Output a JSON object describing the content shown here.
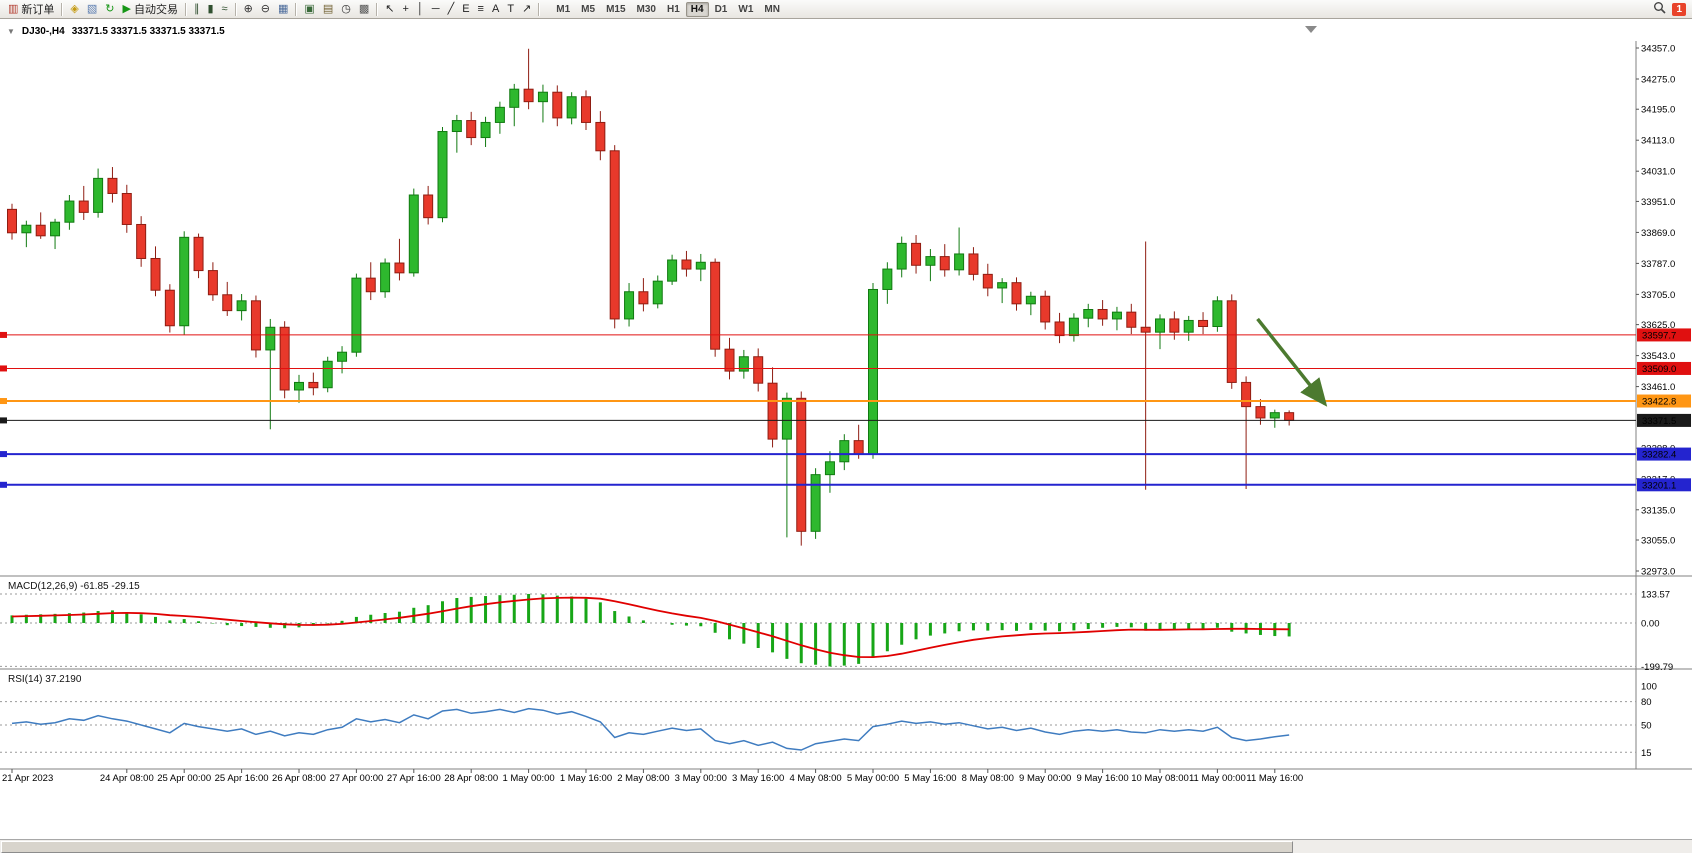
{
  "toolbar": {
    "items": [
      {
        "name": "new-order-button",
        "glyph": "▥",
        "glyph_color": "#b23b2e",
        "label": "新订单"
      },
      {
        "sep": true
      },
      {
        "name": "market-watch-button",
        "glyph": "◈",
        "glyph_color": "#c49a10"
      },
      {
        "name": "navigator-button",
        "glyph": "▧",
        "glyph_color": "#5b7db1"
      },
      {
        "name": "refresh-button",
        "glyph": "↻",
        "glyph_color": "#169616"
      },
      {
        "name": "autotrading-button",
        "glyph": "▶",
        "glyph_color": "#169616",
        "label": "自动交易"
      },
      {
        "sep": true
      },
      {
        "name": "bars-chart-button",
        "glyph": "∥",
        "glyph_color": "#305030"
      },
      {
        "name": "candlestick-chart-button",
        "glyph": "▮",
        "glyph_color": "#305030"
      },
      {
        "name": "line-chart-button",
        "glyph": "≈",
        "glyph_color": "#305030"
      },
      {
        "sep": true
      },
      {
        "name": "zoom-in-button",
        "glyph": "⊕",
        "glyph_color": "#333333"
      },
      {
        "name": "zoom-out-button",
        "glyph": "⊖",
        "glyph_color": "#333333"
      },
      {
        "name": "tile-windows-button",
        "glyph": "▦",
        "glyph_color": "#4a6a9a"
      },
      {
        "sep": true
      },
      {
        "name": "new-chart-button",
        "glyph": "▣",
        "glyph_color": "#3a6a3a"
      },
      {
        "name": "profiles-button",
        "glyph": "▤",
        "glyph_color": "#706030"
      },
      {
        "name": "period-clock-button",
        "glyph": "◷",
        "glyph_color": "#333333"
      },
      {
        "name": "templates-button",
        "glyph": "▩",
        "glyph_color": "#555555"
      },
      {
        "sep": true
      },
      {
        "name": "cursor-button",
        "glyph": "↖",
        "glyph_color": "#222222"
      },
      {
        "name": "crosshair-button",
        "glyph": "+",
        "glyph_color": "#222222"
      },
      {
        "name": "vertical-line-button",
        "glyph": "│",
        "glyph_color": "#222222"
      },
      {
        "name": "horizontal-line-button",
        "glyph": "─",
        "glyph_color": "#222222"
      },
      {
        "name": "trendline-button",
        "glyph": "╱",
        "glyph_color": "#222222"
      },
      {
        "name": "equidistant-channel-button",
        "glyph": "E",
        "glyph_color": "#222222"
      },
      {
        "name": "fibonacci-button",
        "glyph": "≡",
        "glyph_color": "#222222"
      },
      {
        "name": "text-button",
        "glyph": "A",
        "glyph_color": "#222222"
      },
      {
        "name": "text-label-button",
        "glyph": "T",
        "glyph_color": "#222222"
      },
      {
        "name": "arrows-button",
        "glyph": "↗",
        "glyph_color": "#222222"
      },
      {
        "sep": true
      }
    ],
    "timeframes": [
      "M1",
      "M5",
      "M15",
      "M30",
      "H1",
      "H4",
      "D1",
      "W1",
      "MN"
    ],
    "active_timeframe": "H4",
    "notification_count": "1"
  },
  "chart": {
    "symbol_period": "DJ30-,H4",
    "ohlc_line": "33371.5 33371.5 33371.5 33371.5"
  },
  "chart_data": {
    "type": "candlestick",
    "symbol": "DJ30-",
    "timeframe": "H4",
    "ylim": [
      32973.0,
      34357.0
    ],
    "price_axis_ticks": [
      34357.0,
      34275.0,
      34195.0,
      34113.0,
      34031.0,
      33951.0,
      33869.0,
      33787.0,
      33705.0,
      33625.0,
      33543.0,
      33461.0,
      33379.0,
      33298.0,
      33217.0,
      33135.0,
      33055.0,
      32973.0
    ],
    "levels": [
      {
        "price": 33597.7,
        "label": "33597.7",
        "color": "#e01010",
        "text_color": "#ffffff",
        "width": 1
      },
      {
        "price": 33509.0,
        "label": "33509.0",
        "color": "#e01010",
        "text_color": "#ffffff",
        "width": 1
      },
      {
        "price": 33422.8,
        "label": "33422.8",
        "color": "#ff9614",
        "text_color": "#000000",
        "width": 2
      },
      {
        "price": 33371.5,
        "label": "33371.5",
        "color": "#1a1a1a",
        "text_color": "#ffffff",
        "width": 1,
        "current": true
      },
      {
        "price": 33282.4,
        "label": "33282.4",
        "color": "#2424cf",
        "text_color": "#ffffff",
        "width": 2
      },
      {
        "price": 33201.1,
        "label": "33201.1",
        "color": "#2424cf",
        "text_color": "#ffffff",
        "width": 2
      }
    ],
    "time_labels": [
      [
        0,
        "21 Apr 2023"
      ],
      [
        8,
        "24 Apr 08:00"
      ],
      [
        12,
        "25 Apr 00:00"
      ],
      [
        16,
        "25 Apr 16:00"
      ],
      [
        20,
        "26 Apr 08:00"
      ],
      [
        24,
        "27 Apr 00:00"
      ],
      [
        28,
        "27 Apr 16:00"
      ],
      [
        32,
        "28 Apr 08:00"
      ],
      [
        36,
        "1 May 00:00"
      ],
      [
        40,
        "1 May 16:00"
      ],
      [
        44,
        "2 May 08:00"
      ],
      [
        48,
        "3 May 00:00"
      ],
      [
        52,
        "3 May 16:00"
      ],
      [
        56,
        "4 May 08:00"
      ],
      [
        60,
        "5 May 00:00"
      ],
      [
        64,
        "5 May 16:00"
      ],
      [
        68,
        "8 May 08:00"
      ],
      [
        72,
        "9 May 00:00"
      ],
      [
        76,
        "9 May 16:00"
      ],
      [
        80,
        "10 May 08:00"
      ],
      [
        84,
        "11 May 00:00"
      ],
      [
        88,
        "11 May 16:00"
      ]
    ],
    "candles": [
      [
        33930,
        33945,
        33850,
        33868
      ],
      [
        33868,
        33900,
        33830,
        33888
      ],
      [
        33888,
        33922,
        33852,
        33860
      ],
      [
        33860,
        33905,
        33825,
        33896
      ],
      [
        33896,
        33968,
        33876,
        33952
      ],
      [
        33952,
        33992,
        33902,
        33922
      ],
      [
        33922,
        34038,
        33908,
        34012
      ],
      [
        34012,
        34042,
        33948,
        33972
      ],
      [
        33972,
        33995,
        33868,
        33890
      ],
      [
        33890,
        33912,
        33778,
        33800
      ],
      [
        33800,
        33832,
        33700,
        33716
      ],
      [
        33716,
        33732,
        33604,
        33622
      ],
      [
        33622,
        33872,
        33598,
        33856
      ],
      [
        33856,
        33866,
        33748,
        33768
      ],
      [
        33768,
        33790,
        33688,
        33704
      ],
      [
        33704,
        33738,
        33648,
        33662
      ],
      [
        33662,
        33706,
        33636,
        33688
      ],
      [
        33688,
        33702,
        33538,
        33558
      ],
      [
        33558,
        33640,
        33348,
        33618
      ],
      [
        33618,
        33634,
        33430,
        33452
      ],
      [
        33452,
        33492,
        33418,
        33472
      ],
      [
        33472,
        33498,
        33438,
        33458
      ],
      [
        33458,
        33540,
        33446,
        33528
      ],
      [
        33528,
        33568,
        33496,
        33552
      ],
      [
        33552,
        33760,
        33540,
        33748
      ],
      [
        33748,
        33790,
        33690,
        33712
      ],
      [
        33712,
        33800,
        33696,
        33788
      ],
      [
        33788,
        33852,
        33742,
        33762
      ],
      [
        33762,
        33985,
        33752,
        33968
      ],
      [
        33968,
        33992,
        33890,
        33908
      ],
      [
        33908,
        34148,
        33896,
        34136
      ],
      [
        34136,
        34180,
        34080,
        34165
      ],
      [
        34165,
        34188,
        34100,
        34120
      ],
      [
        34120,
        34175,
        34095,
        34160
      ],
      [
        34160,
        34215,
        34130,
        34200
      ],
      [
        34200,
        34262,
        34150,
        34248
      ],
      [
        34248,
        34355,
        34195,
        34215
      ],
      [
        34215,
        34260,
        34160,
        34240
      ],
      [
        34240,
        34258,
        34150,
        34172
      ],
      [
        34172,
        34240,
        34155,
        34228
      ],
      [
        34228,
        34245,
        34140,
        34160
      ],
      [
        34160,
        34190,
        34060,
        34085
      ],
      [
        34085,
        34100,
        33615,
        33640
      ],
      [
        33640,
        33735,
        33620,
        33712
      ],
      [
        33712,
        33748,
        33660,
        33680
      ],
      [
        33680,
        33755,
        33668,
        33740
      ],
      [
        33740,
        33810,
        33730,
        33796
      ],
      [
        33796,
        33820,
        33752,
        33772
      ],
      [
        33772,
        33812,
        33740,
        33790
      ],
      [
        33790,
        33800,
        33540,
        33560
      ],
      [
        33560,
        33590,
        33480,
        33502
      ],
      [
        33502,
        33558,
        33482,
        33540
      ],
      [
        33540,
        33562,
        33448,
        33470
      ],
      [
        33470,
        33512,
        33300,
        33322
      ],
      [
        33322,
        33445,
        33062,
        33430
      ],
      [
        33430,
        33448,
        33040,
        33078
      ],
      [
        33078,
        33245,
        33058,
        33228
      ],
      [
        33228,
        33290,
        33180,
        33262
      ],
      [
        33262,
        33335,
        33240,
        33318
      ],
      [
        33318,
        33360,
        33270,
        33282
      ],
      [
        33282,
        33735,
        33270,
        33718
      ],
      [
        33718,
        33790,
        33680,
        33772
      ],
      [
        33772,
        33858,
        33750,
        33840
      ],
      [
        33840,
        33862,
        33760,
        33782
      ],
      [
        33782,
        33825,
        33740,
        33805
      ],
      [
        33805,
        33838,
        33752,
        33770
      ],
      [
        33770,
        33882,
        33755,
        33812
      ],
      [
        33812,
        33830,
        33742,
        33758
      ],
      [
        33758,
        33786,
        33700,
        33722
      ],
      [
        33722,
        33748,
        33682,
        33736
      ],
      [
        33736,
        33750,
        33662,
        33680
      ],
      [
        33680,
        33712,
        33650,
        33700
      ],
      [
        33700,
        33715,
        33612,
        33632
      ],
      [
        33632,
        33656,
        33576,
        33596
      ],
      [
        33596,
        33655,
        33580,
        33642
      ],
      [
        33642,
        33680,
        33618,
        33665
      ],
      [
        33665,
        33690,
        33622,
        33640
      ],
      [
        33640,
        33672,
        33610,
        33658
      ],
      [
        33658,
        33680,
        33600,
        33618
      ],
      [
        33618,
        33845,
        33188,
        33605
      ],
      [
        33605,
        33652,
        33560,
        33640
      ],
      [
        33640,
        33660,
        33585,
        33605
      ],
      [
        33605,
        33648,
        33582,
        33636
      ],
      [
        33636,
        33658,
        33600,
        33620
      ],
      [
        33620,
        33700,
        33606,
        33688
      ],
      [
        33688,
        33705,
        33455,
        33472
      ],
      [
        33472,
        33488,
        33190,
        33408
      ],
      [
        33408,
        33428,
        33360,
        33378
      ],
      [
        33378,
        33400,
        33352,
        33392
      ],
      [
        33392,
        33398,
        33358,
        33371.5
      ]
    ],
    "macd": {
      "name": "MACD(12,26,9)",
      "value_main": "-61.85",
      "value_signal": "-29.15",
      "axis_labels": [
        133.57,
        0,
        -199.79
      ],
      "histogram_color": "#17a617",
      "signal_color": "#e00000",
      "main": [
        35,
        38,
        40,
        42,
        45,
        48,
        55,
        58,
        50,
        40,
        28,
        12,
        18,
        8,
        -2,
        -10,
        -14,
        -18,
        -22,
        -24,
        -20,
        -12,
        -2,
        10,
        28,
        38,
        46,
        52,
        70,
        82,
        100,
        115,
        120,
        124,
        128,
        130,
        133.57,
        132,
        126,
        122,
        112,
        95,
        55,
        30,
        12,
        0,
        -8,
        -12,
        -15,
        -45,
        -75,
        -95,
        -115,
        -135,
        -165,
        -185,
        -192,
        -199.79,
        -196,
        -188,
        -160,
        -130,
        -100,
        -75,
        -58,
        -48,
        -38,
        -34,
        -35,
        -33,
        -36,
        -32,
        -35,
        -38,
        -34,
        -28,
        -22,
        -18,
        -20,
        -35,
        -30,
        -28,
        -26,
        -27,
        -22,
        -40,
        -48,
        -55,
        -60,
        -61.85
      ],
      "signal": [
        30,
        31.6,
        33.3,
        35,
        37,
        39.2,
        42.4,
        45.5,
        46.4,
        45.1,
        41.7,
        35.8,
        32.2,
        27.4,
        21.5,
        15.2,
        9.4,
        3.9,
        -1.3,
        -5.8,
        -8.6,
        -9.3,
        -7.8,
        -4.2,
        2.2,
        9.4,
        16.7,
        23.8,
        33,
        42.8,
        54.2,
        66.4,
        77.1,
        86.5,
        94.8,
        101.8,
        108.2,
        113,
        115.6,
        116.9,
        115.9,
        111.7,
        100.4,
        86.3,
        71.4,
        57.1,
        44.1,
        32.9,
        23.3,
        9.6,
        -7.3,
        -24.8,
        -42.8,
        -61.2,
        -82,
        -102.6,
        -120.5,
        -136.4,
        -148.3,
        -156.2,
        -157,
        -151.6,
        -141.3,
        -128,
        -114,
        -100.8,
        -88.2,
        -77.4,
        -68.9,
        -61.7,
        -56.6,
        -51.7,
        -48.4,
        -46.3,
        -43.8,
        -40.6,
        -36.9,
        -33.1,
        -30.5,
        -31.4,
        -31.1,
        -30.5,
        -29.6,
        -29.1,
        -27.7,
        -26.5,
        -26.8,
        -27.4,
        -28.3,
        -29.15
      ]
    },
    "rsi": {
      "name": "RSI(14)",
      "value": "37.2190",
      "levels": [
        100,
        80,
        50,
        15
      ],
      "dashed_levels": [
        80,
        50,
        15
      ],
      "line_color": "#3f7cc0",
      "values": [
        52,
        54,
        51,
        53,
        58,
        56,
        62,
        58,
        55,
        50,
        45,
        40,
        52,
        48,
        45,
        42,
        45,
        38,
        42,
        36,
        40,
        38,
        44,
        47,
        58,
        54,
        57,
        53,
        63,
        58,
        68,
        70,
        65,
        67,
        70,
        66,
        71,
        69,
        64,
        67,
        61,
        54,
        34,
        40,
        38,
        42,
        46,
        43,
        45,
        30,
        26,
        30,
        24,
        28,
        20,
        18,
        26,
        29,
        32,
        30,
        48,
        51,
        55,
        52,
        54,
        51,
        53,
        49,
        45,
        47,
        43,
        46,
        41,
        38,
        42,
        44,
        42,
        44,
        41,
        40,
        44,
        42,
        44,
        42,
        47,
        34,
        30,
        32,
        35,
        37.22
      ]
    },
    "annotation_arrow": {
      "from_idx": 86.8,
      "from_price": 33640,
      "to_idx": 91.5,
      "to_price": 33415,
      "color": "#4c7a2f"
    },
    "colors": {
      "bull_fill": "#2eb82e",
      "bull_stroke": "#117a11",
      "bear_fill": "#e8392b",
      "bear_stroke": "#8f1d12"
    }
  }
}
